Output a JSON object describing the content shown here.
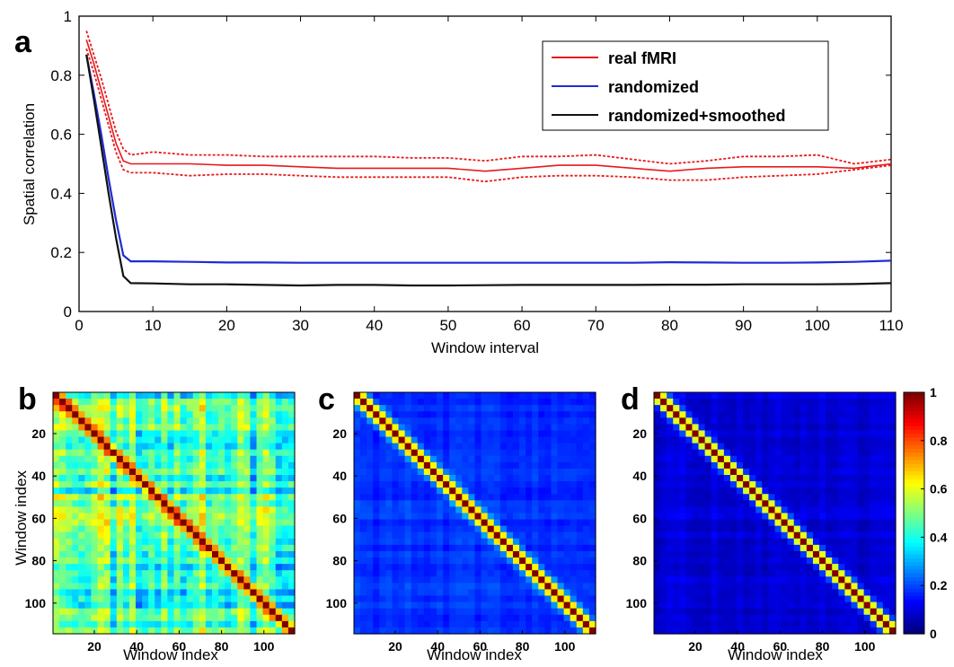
{
  "panels": {
    "a": "a",
    "b": "b",
    "c": "c",
    "d": "d"
  },
  "chart_data": [
    {
      "type": "line",
      "panel": "a",
      "xlabel": "Window interval",
      "ylabel": "Spatial correlation",
      "xlim": [
        0,
        110
      ],
      "ylim": [
        0,
        1
      ],
      "xticks": [
        0,
        10,
        20,
        30,
        40,
        50,
        60,
        70,
        80,
        90,
        100,
        110
      ],
      "yticks": [
        0,
        0.2,
        0.4,
        0.6,
        0.8,
        1
      ],
      "ytick_labels": [
        "0",
        "0.2",
        "0.4",
        "0.6",
        "0.8",
        "1"
      ],
      "legend_position": "top-right",
      "grid": false,
      "x": [
        1,
        2,
        3,
        4,
        5,
        6,
        7,
        10,
        15,
        20,
        25,
        30,
        35,
        40,
        45,
        50,
        55,
        60,
        65,
        70,
        75,
        80,
        85,
        90,
        95,
        100,
        105,
        110
      ],
      "series": [
        {
          "name": "real fMRI",
          "color": "#e8191c",
          "values": [
            0.92,
            0.84,
            0.75,
            0.66,
            0.57,
            0.51,
            0.5,
            0.5,
            0.5,
            0.495,
            0.495,
            0.49,
            0.485,
            0.485,
            0.485,
            0.485,
            0.475,
            0.485,
            0.495,
            0.495,
            0.485,
            0.475,
            0.485,
            0.49,
            0.49,
            0.49,
            0.485,
            0.5
          ],
          "upper": [
            0.95,
            0.87,
            0.79,
            0.7,
            0.61,
            0.55,
            0.53,
            0.54,
            0.53,
            0.53,
            0.525,
            0.525,
            0.525,
            0.525,
            0.52,
            0.52,
            0.51,
            0.525,
            0.525,
            0.53,
            0.515,
            0.5,
            0.51,
            0.525,
            0.525,
            0.53,
            0.5,
            0.515
          ],
          "lower": [
            0.89,
            0.81,
            0.72,
            0.63,
            0.54,
            0.48,
            0.47,
            0.47,
            0.46,
            0.465,
            0.465,
            0.46,
            0.455,
            0.455,
            0.455,
            0.455,
            0.44,
            0.455,
            0.46,
            0.46,
            0.455,
            0.445,
            0.445,
            0.455,
            0.46,
            0.465,
            0.48,
            0.495
          ]
        },
        {
          "name": "randomized",
          "color": "#1f2bd6",
          "values": [
            0.87,
            0.74,
            0.6,
            0.45,
            0.31,
            0.19,
            0.17,
            0.17,
            0.168,
            0.166,
            0.166,
            0.165,
            0.165,
            0.165,
            0.165,
            0.165,
            0.165,
            0.165,
            0.165,
            0.165,
            0.165,
            0.167,
            0.166,
            0.165,
            0.165,
            0.166,
            0.168,
            0.172
          ]
        },
        {
          "name": "randomized+smoothed",
          "color": "#111111",
          "values": [
            0.87,
            0.72,
            0.56,
            0.4,
            0.25,
            0.12,
            0.096,
            0.095,
            0.092,
            0.092,
            0.09,
            0.088,
            0.09,
            0.09,
            0.088,
            0.088,
            0.089,
            0.09,
            0.09,
            0.09,
            0.09,
            0.091,
            0.091,
            0.092,
            0.092,
            0.092,
            0.093,
            0.096
          ]
        }
      ]
    },
    {
      "type": "heatmap",
      "panel": "b",
      "xlabel": "Window index",
      "ylabel": "Window index",
      "n": 114,
      "ticks": [
        20,
        40,
        60,
        80,
        100
      ],
      "diagonal_value": 1.0,
      "off_diagonal_mean": 0.45,
      "diagonal_width": 2.5
    },
    {
      "type": "heatmap",
      "panel": "c",
      "xlabel": "Window index",
      "ylabel": "",
      "n": 114,
      "ticks": [
        20,
        40,
        60,
        80,
        100
      ],
      "diagonal_value": 1.0,
      "off_diagonal_mean": 0.17,
      "diagonal_width": 2.8
    },
    {
      "type": "heatmap",
      "panel": "d",
      "xlabel": "Window index",
      "ylabel": "",
      "n": 114,
      "ticks": [
        20,
        40,
        60,
        80,
        100
      ],
      "diagonal_value": 1.0,
      "off_diagonal_mean": 0.09,
      "diagonal_width": 2.8,
      "colorbar": {
        "min": 0,
        "max": 1,
        "ticks": [
          0,
          0.2,
          0.4,
          0.6,
          0.8,
          1
        ],
        "tick_labels": [
          "0",
          "0.2",
          "0.4",
          "0.6",
          "0.8",
          "1"
        ]
      }
    }
  ]
}
